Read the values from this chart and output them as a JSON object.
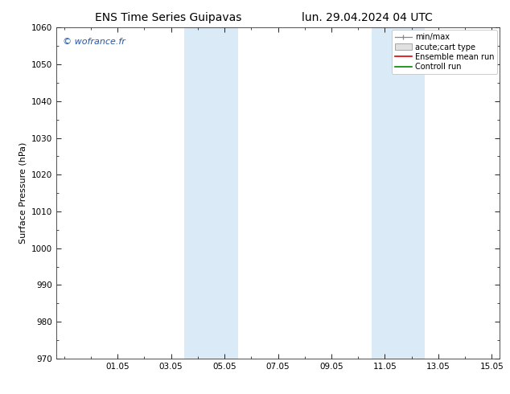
{
  "title_left": "ENS Time Series Guipavas",
  "title_right": "lun. 29.04.2024 04 UTC",
  "ylabel": "Surface Pressure (hPa)",
  "ylim": [
    970,
    1060
  ],
  "yticks": [
    970,
    980,
    990,
    1000,
    1010,
    1020,
    1030,
    1040,
    1050,
    1060
  ],
  "xlim": [
    -0.3,
    16.3
  ],
  "xtick_labels": [
    "01.05",
    "03.05",
    "05.05",
    "07.05",
    "09.05",
    "11.05",
    "13.05",
    "15.05"
  ],
  "xtick_positions": [
    2,
    4,
    6,
    8,
    10,
    12,
    14,
    16
  ],
  "shaded_bands": [
    {
      "x_start": 4.5,
      "x_end": 6.5
    },
    {
      "x_start": 11.5,
      "x_end": 13.5
    }
  ],
  "shade_color": "#daeaf7",
  "watermark": "© wofrance.fr",
  "legend_entries": [
    {
      "label": "min/max",
      "color": "#888888",
      "type": "errorbar"
    },
    {
      "label": "acute;cart type",
      "color": "#cccccc",
      "type": "box"
    },
    {
      "label": "Ensemble mean run",
      "color": "#dd0000",
      "type": "line"
    },
    {
      "label": "Controll run",
      "color": "#008800",
      "type": "line"
    }
  ],
  "background_color": "#ffffff",
  "plot_bg_color": "#ffffff",
  "border_color": "#333333",
  "title_fontsize": 10,
  "label_fontsize": 8,
  "tick_fontsize": 7.5,
  "legend_fontsize": 7,
  "watermark_color": "#2255aa",
  "watermark_fontsize": 8
}
